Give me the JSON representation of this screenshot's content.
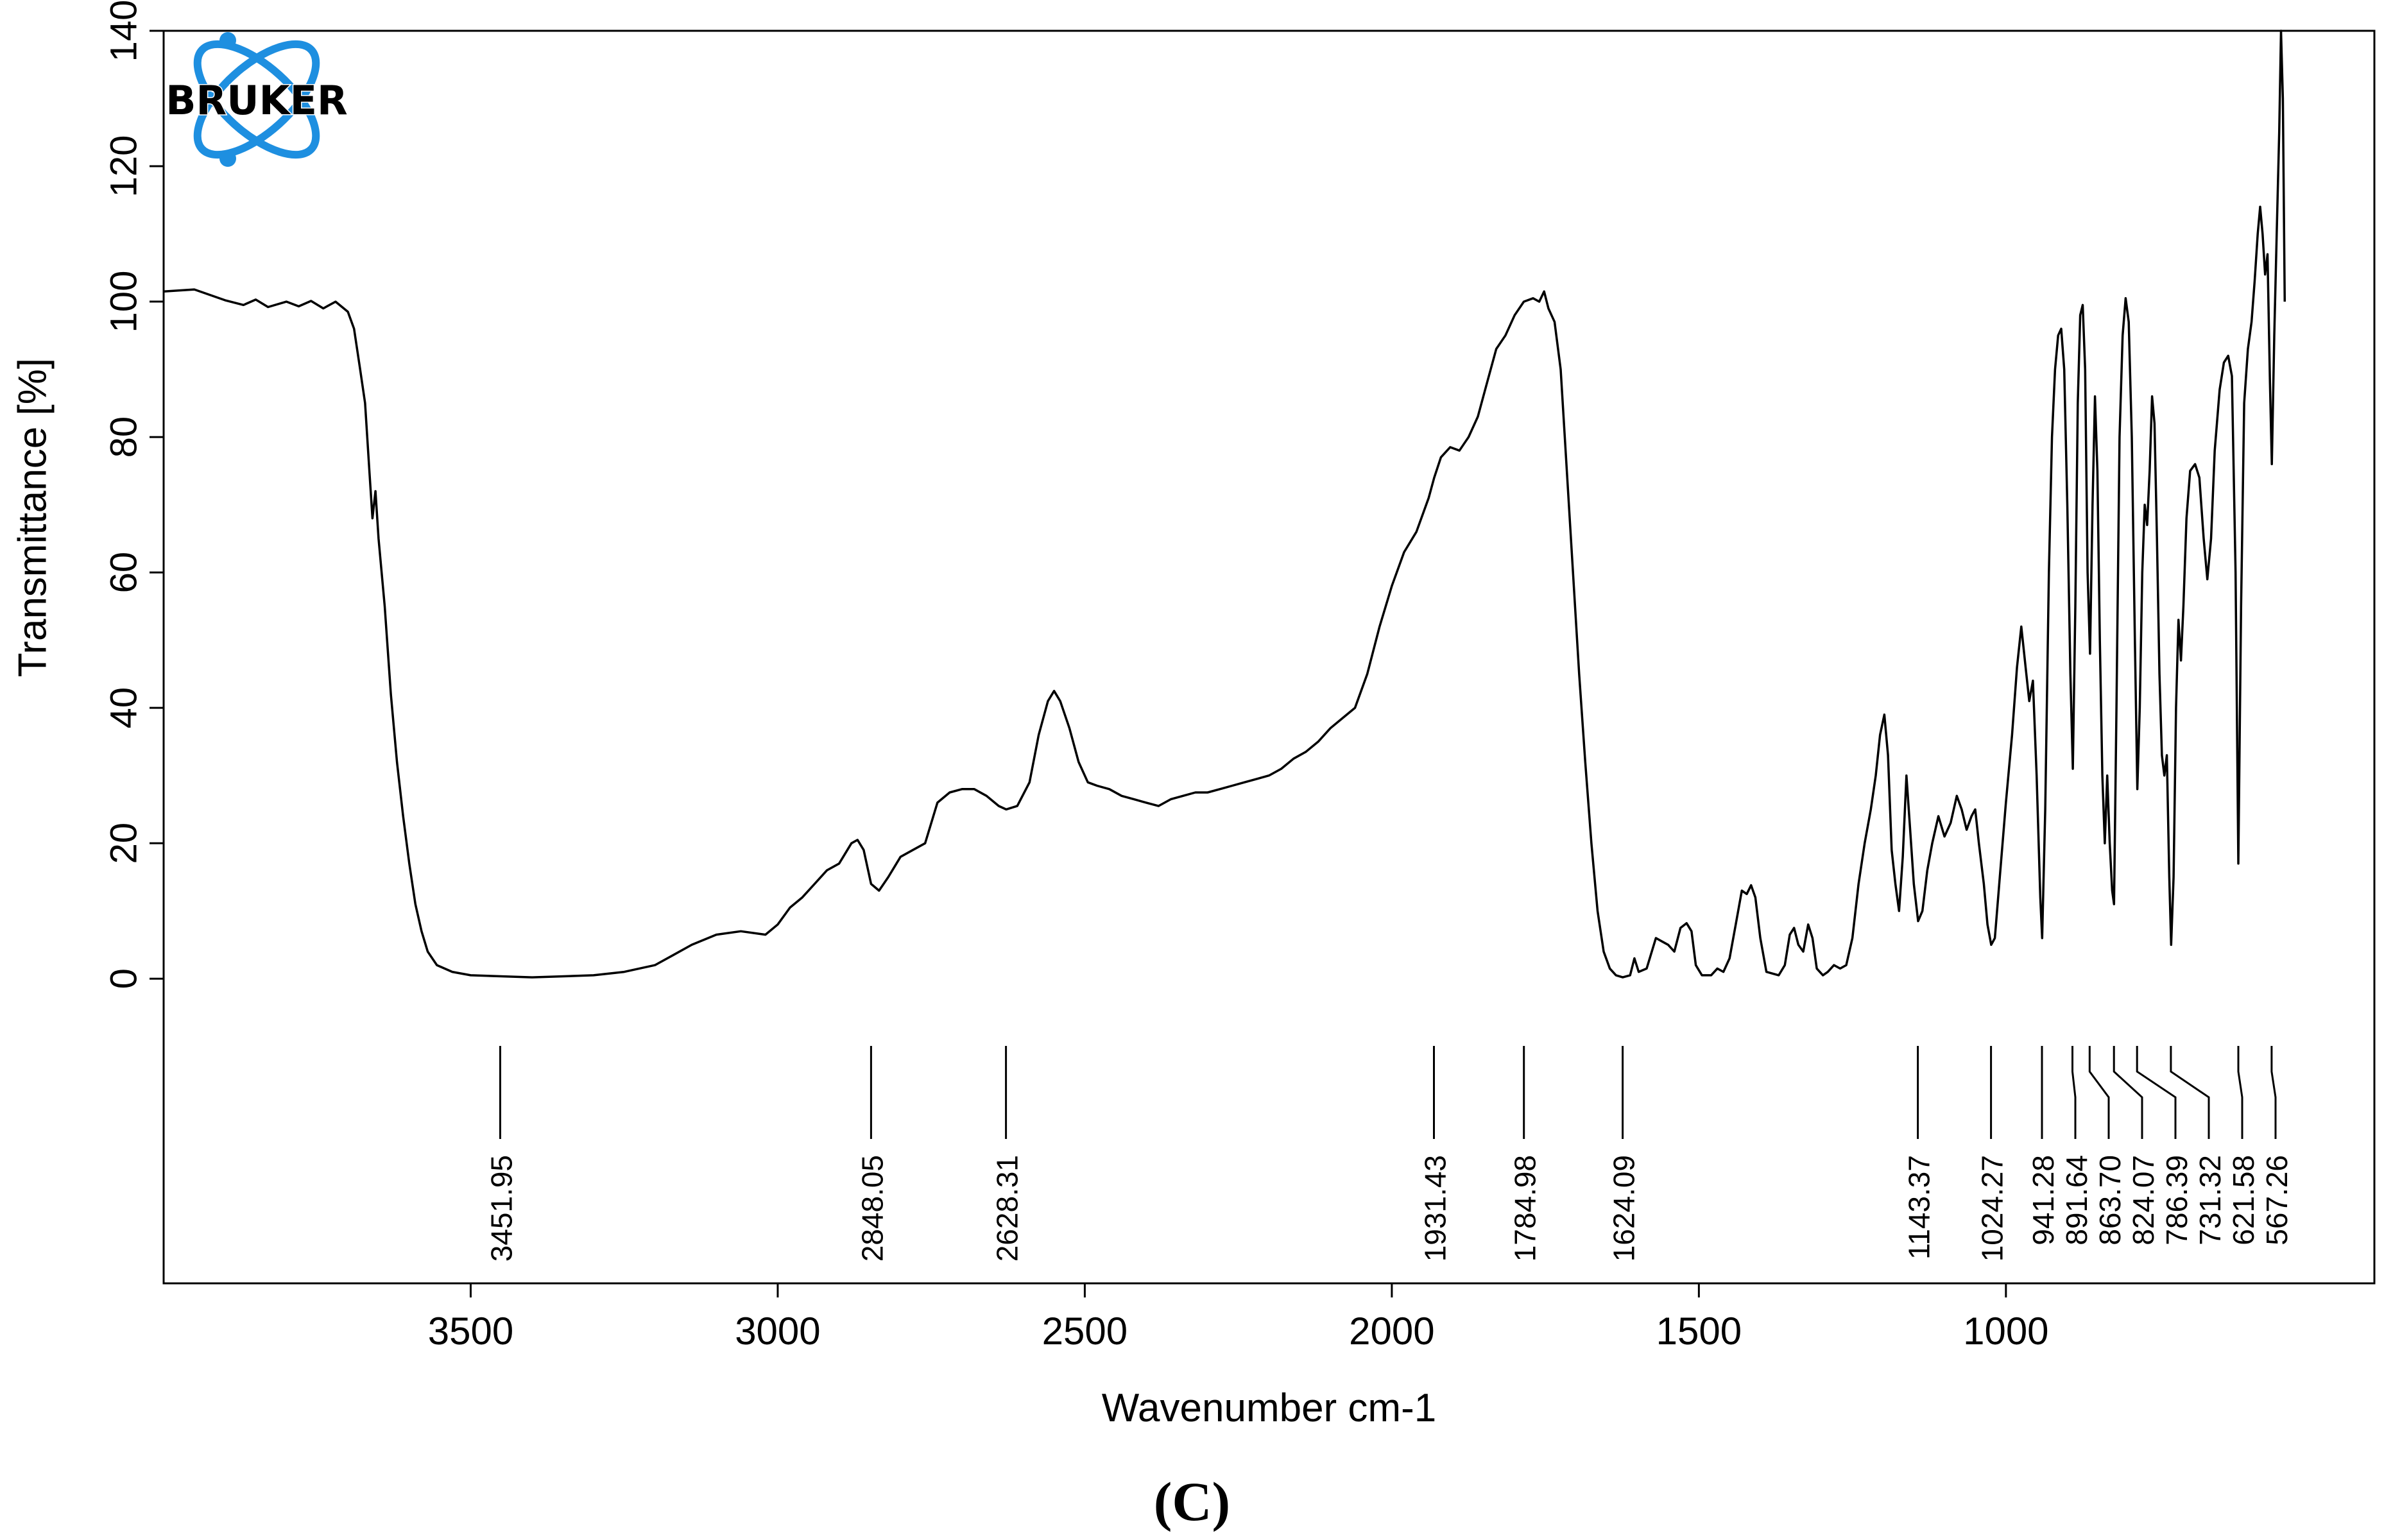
{
  "chart_data": {
    "type": "line",
    "xlabel": "Wavenumber cm-1",
    "ylabel": "Transmittance [%]",
    "xlim": [
      4000,
      400
    ],
    "ylim": [
      -45,
      140
    ],
    "x_reversed": true,
    "grid": false,
    "x_ticks": [
      3500,
      3000,
      2500,
      2000,
      1500,
      1000
    ],
    "y_ticks": [
      0,
      20,
      40,
      60,
      80,
      100,
      120,
      140
    ],
    "series": [
      {
        "points": [
          [
            4000,
            101.5
          ],
          [
            3950,
            101.8
          ],
          [
            3900,
            100.2
          ],
          [
            3870,
            99.5
          ],
          [
            3850,
            100.3
          ],
          [
            3830,
            99.2
          ],
          [
            3800,
            100.0
          ],
          [
            3780,
            99.3
          ],
          [
            3760,
            100.1
          ],
          [
            3740,
            99.0
          ],
          [
            3720,
            100.0
          ],
          [
            3700,
            98.5
          ],
          [
            3690,
            96
          ],
          [
            3680,
            90
          ],
          [
            3672,
            85
          ],
          [
            3665,
            75
          ],
          [
            3660,
            68
          ],
          [
            3655,
            72
          ],
          [
            3650,
            65
          ],
          [
            3640,
            55
          ],
          [
            3630,
            42
          ],
          [
            3620,
            32
          ],
          [
            3610,
            24
          ],
          [
            3600,
            17
          ],
          [
            3590,
            11
          ],
          [
            3580,
            7
          ],
          [
            3570,
            4
          ],
          [
            3555,
            2
          ],
          [
            3530,
            1
          ],
          [
            3500,
            0.5
          ],
          [
            3400,
            0.2
          ],
          [
            3300,
            0.5
          ],
          [
            3250,
            1
          ],
          [
            3200,
            2
          ],
          [
            3170,
            3.5
          ],
          [
            3140,
            5
          ],
          [
            3100,
            6.5
          ],
          [
            3060,
            7
          ],
          [
            3020,
            6.5
          ],
          [
            3000,
            8
          ],
          [
            2980,
            10.5
          ],
          [
            2960,
            12
          ],
          [
            2940,
            14
          ],
          [
            2920,
            16
          ],
          [
            2900,
            17
          ],
          [
            2880,
            20
          ],
          [
            2870,
            20.5
          ],
          [
            2860,
            19
          ],
          [
            2848,
            14
          ],
          [
            2835,
            13
          ],
          [
            2820,
            15
          ],
          [
            2800,
            18
          ],
          [
            2780,
            19
          ],
          [
            2760,
            20
          ],
          [
            2740,
            26
          ],
          [
            2720,
            27.5
          ],
          [
            2700,
            28
          ],
          [
            2680,
            28
          ],
          [
            2660,
            27
          ],
          [
            2640,
            25.5
          ],
          [
            2628,
            25
          ],
          [
            2610,
            25.5
          ],
          [
            2590,
            29
          ],
          [
            2575,
            36
          ],
          [
            2560,
            41
          ],
          [
            2550,
            42.5
          ],
          [
            2540,
            41
          ],
          [
            2525,
            37
          ],
          [
            2510,
            32
          ],
          [
            2495,
            29
          ],
          [
            2480,
            28.5
          ],
          [
            2460,
            28
          ],
          [
            2440,
            27
          ],
          [
            2420,
            26.5
          ],
          [
            2400,
            26
          ],
          [
            2380,
            25.5
          ],
          [
            2360,
            26.5
          ],
          [
            2340,
            27
          ],
          [
            2320,
            27.5
          ],
          [
            2300,
            27.5
          ],
          [
            2280,
            28
          ],
          [
            2260,
            28.5
          ],
          [
            2240,
            29
          ],
          [
            2220,
            29.5
          ],
          [
            2200,
            30
          ],
          [
            2180,
            31
          ],
          [
            2160,
            32.5
          ],
          [
            2140,
            33.5
          ],
          [
            2120,
            35
          ],
          [
            2100,
            37
          ],
          [
            2080,
            38.5
          ],
          [
            2060,
            40
          ],
          [
            2040,
            45
          ],
          [
            2020,
            52
          ],
          [
            2000,
            58
          ],
          [
            1980,
            63
          ],
          [
            1960,
            66
          ],
          [
            1940,
            71
          ],
          [
            1931,
            74
          ],
          [
            1920,
            77
          ],
          [
            1905,
            78.5
          ],
          [
            1890,
            78
          ],
          [
            1875,
            80
          ],
          [
            1860,
            83
          ],
          [
            1845,
            88
          ],
          [
            1830,
            93
          ],
          [
            1815,
            95
          ],
          [
            1800,
            98
          ],
          [
            1785,
            100
          ],
          [
            1770,
            100.5
          ],
          [
            1760,
            100
          ],
          [
            1752,
            101.5
          ],
          [
            1745,
            99
          ],
          [
            1735,
            97
          ],
          [
            1725,
            90
          ],
          [
            1715,
            75
          ],
          [
            1705,
            60
          ],
          [
            1695,
            45
          ],
          [
            1685,
            32
          ],
          [
            1675,
            20
          ],
          [
            1665,
            10
          ],
          [
            1655,
            4
          ],
          [
            1645,
            1.5
          ],
          [
            1635,
            0.5
          ],
          [
            1624,
            0.2
          ],
          [
            1612,
            0.5
          ],
          [
            1605,
            3
          ],
          [
            1598,
            1
          ],
          [
            1585,
            1.5
          ],
          [
            1570,
            6
          ],
          [
            1560,
            5.5
          ],
          [
            1550,
            5
          ],
          [
            1540,
            4
          ],
          [
            1530,
            7.5
          ],
          [
            1520,
            8.2
          ],
          [
            1512,
            7
          ],
          [
            1505,
            2
          ],
          [
            1495,
            0.5
          ],
          [
            1480,
            0.5
          ],
          [
            1470,
            1.5
          ],
          [
            1460,
            1
          ],
          [
            1450,
            3
          ],
          [
            1440,
            8
          ],
          [
            1430,
            13
          ],
          [
            1422,
            12.5
          ],
          [
            1415,
            13.8
          ],
          [
            1408,
            12
          ],
          [
            1400,
            6
          ],
          [
            1390,
            1
          ],
          [
            1370,
            0.5
          ],
          [
            1360,
            2
          ],
          [
            1352,
            6.5
          ],
          [
            1345,
            7.5
          ],
          [
            1338,
            5
          ],
          [
            1330,
            4
          ],
          [
            1322,
            8
          ],
          [
            1315,
            6
          ],
          [
            1308,
            1.5
          ],
          [
            1298,
            0.5
          ],
          [
            1290,
            1
          ],
          [
            1280,
            2
          ],
          [
            1270,
            1.5
          ],
          [
            1260,
            2
          ],
          [
            1250,
            6
          ],
          [
            1240,
            14
          ],
          [
            1230,
            20
          ],
          [
            1220,
            25
          ],
          [
            1212,
            30
          ],
          [
            1205,
            36
          ],
          [
            1198,
            39
          ],
          [
            1192,
            33
          ],
          [
            1186,
            19
          ],
          [
            1180,
            14
          ],
          [
            1174,
            10
          ],
          [
            1168,
            18
          ],
          [
            1162,
            30
          ],
          [
            1156,
            22
          ],
          [
            1150,
            14
          ],
          [
            1143,
            8.5
          ],
          [
            1136,
            10
          ],
          [
            1128,
            16
          ],
          [
            1120,
            20
          ],
          [
            1110,
            24
          ],
          [
            1100,
            21
          ],
          [
            1090,
            23
          ],
          [
            1080,
            27
          ],
          [
            1072,
            25
          ],
          [
            1064,
            22
          ],
          [
            1056,
            24
          ],
          [
            1050,
            25
          ],
          [
            1044,
            20
          ],
          [
            1036,
            14
          ],
          [
            1030,
            8
          ],
          [
            1024,
            5
          ],
          [
            1018,
            6
          ],
          [
            1010,
            15
          ],
          [
            1000,
            26
          ],
          [
            990,
            36
          ],
          [
            982,
            46
          ],
          [
            975,
            52
          ],
          [
            968,
            46
          ],
          [
            962,
            41
          ],
          [
            956,
            44
          ],
          [
            950,
            30
          ],
          [
            944,
            12
          ],
          [
            941,
            6
          ],
          [
            936,
            25
          ],
          [
            930,
            60
          ],
          [
            925,
            80
          ],
          [
            920,
            90
          ],
          [
            915,
            95
          ],
          [
            910,
            96
          ],
          [
            905,
            90
          ],
          [
            900,
            70
          ],
          [
            895,
            45
          ],
          [
            891,
            31
          ],
          [
            887,
            55
          ],
          [
            883,
            85
          ],
          [
            879,
            98
          ],
          [
            875,
            99.5
          ],
          [
            871,
            90
          ],
          [
            867,
            60
          ],
          [
            863,
            48
          ],
          [
            859,
            70
          ],
          [
            855,
            86
          ],
          [
            851,
            75
          ],
          [
            847,
            50
          ],
          [
            843,
            30
          ],
          [
            839,
            20
          ],
          [
            835,
            30
          ],
          [
            831,
            20
          ],
          [
            827,
            13
          ],
          [
            824,
            11
          ],
          [
            820,
            40
          ],
          [
            815,
            80
          ],
          [
            810,
            95
          ],
          [
            805,
            100.5
          ],
          [
            800,
            97
          ],
          [
            795,
            80
          ],
          [
            790,
            50
          ],
          [
            786,
            28
          ],
          [
            782,
            40
          ],
          [
            778,
            60
          ],
          [
            774,
            70
          ],
          [
            770,
            67
          ],
          [
            766,
            75
          ],
          [
            762,
            86
          ],
          [
            758,
            82
          ],
          [
            754,
            65
          ],
          [
            750,
            45
          ],
          [
            746,
            33
          ],
          [
            742,
            30
          ],
          [
            738,
            33
          ],
          [
            734,
            15
          ],
          [
            731,
            5
          ],
          [
            727,
            15
          ],
          [
            723,
            40
          ],
          [
            719,
            53
          ],
          [
            715,
            47
          ],
          [
            711,
            55
          ],
          [
            706,
            68
          ],
          [
            700,
            75
          ],
          [
            692,
            76
          ],
          [
            685,
            74
          ],
          [
            678,
            65
          ],
          [
            672,
            59
          ],
          [
            666,
            65
          ],
          [
            660,
            78
          ],
          [
            652,
            87
          ],
          [
            645,
            91
          ],
          [
            638,
            92
          ],
          [
            632,
            89
          ],
          [
            626,
            60
          ],
          [
            621.5,
            17
          ],
          [
            617,
            55
          ],
          [
            612,
            85
          ],
          [
            606,
            93
          ],
          [
            600,
            97
          ],
          [
            595,
            103
          ],
          [
            590,
            110
          ],
          [
            586,
            114
          ],
          [
            582,
            110
          ],
          [
            578,
            104
          ],
          [
            574,
            107
          ],
          [
            570,
            88
          ],
          [
            567,
            76
          ],
          [
            563,
            95
          ],
          [
            559,
            110
          ],
          [
            555,
            125
          ],
          [
            552,
            140
          ],
          [
            549,
            130
          ],
          [
            546,
            100
          ]
        ]
      }
    ],
    "peak_labels": [
      "3451.95",
      "2848.05",
      "2628.31",
      "1931.43",
      "1784.98",
      "1624.09",
      "1143.37",
      "1024.27",
      "941.28",
      "891.64",
      "863.70",
      "824.07",
      "786.39",
      "731.32",
      "621.58",
      "567.26"
    ],
    "peak_positions": [
      3451.95,
      2848.05,
      2628.31,
      1931.43,
      1784.98,
      1624.09,
      1143.37,
      1024.27,
      941.28,
      891.64,
      863.7,
      824.07,
      786.39,
      731.32,
      621.58,
      567.26
    ]
  },
  "logo": {
    "text": "BRUKER",
    "color": "#1e8fe0"
  },
  "panel_label": "(C)"
}
